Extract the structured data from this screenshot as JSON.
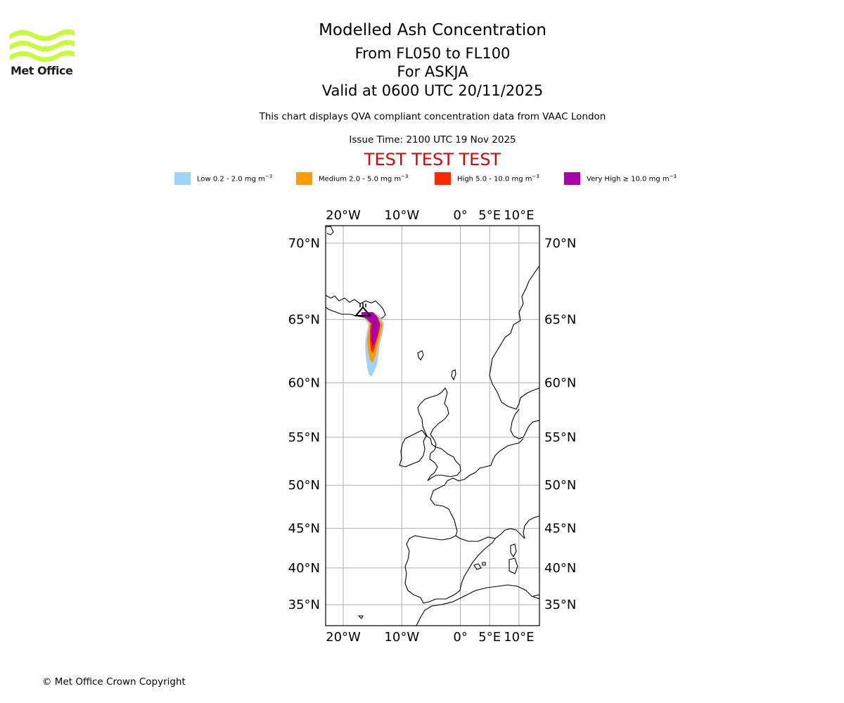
{
  "header": {
    "title": "Modelled Ash Concentration",
    "levels": "From FL050 to FL100",
    "volcano": "For ASKJA",
    "valid": "Valid at 0600 UTC 20/11/2025",
    "compliance": "This chart displays QVA compliant concentration data from VAAC London",
    "issue_time": "Issue Time: 2100 UTC 19 Nov 2025",
    "test_banner": "TEST TEST TEST"
  },
  "logo": {
    "name": "met-office-logo",
    "text": "Met Office",
    "color": "#c8fa3c"
  },
  "legend": [
    {
      "label": "Low 0.2 - 2.0 mg m",
      "unit_exp": "−3",
      "color": "#a0d2fa"
    },
    {
      "label": "Medium 2.0 - 5.0 mg m",
      "unit_exp": "−3",
      "color": "#ff9a00"
    },
    {
      "label": "High 5.0 - 10.0 mg m",
      "unit_exp": "−3",
      "color": "#ff2800"
    },
    {
      "label": "Very High ≥ 10.0 mg m",
      "unit_exp": "−3",
      "color": "#aa00aa"
    }
  ],
  "map": {
    "lon_ticks": [
      {
        "lon": -20,
        "label": "20°W"
      },
      {
        "lon": -10,
        "label": "10°W"
      },
      {
        "lon": 0,
        "label": "0°"
      },
      {
        "lon": 5,
        "label": "5°E"
      },
      {
        "lon": 10,
        "label": "10°E"
      }
    ],
    "lat_ticks": [
      {
        "lat": 70,
        "label": "70°N"
      },
      {
        "lat": 65,
        "label": "65°N"
      },
      {
        "lat": 60,
        "label": "60°N"
      },
      {
        "lat": 55,
        "label": "55°N"
      },
      {
        "lat": 50,
        "label": "50°N"
      },
      {
        "lat": 45,
        "label": "45°N"
      },
      {
        "lat": 40,
        "label": "40°N"
      },
      {
        "lat": 35,
        "label": "35°N"
      }
    ],
    "lon_range": [
      -23,
      13.5
    ],
    "lat_range": [
      32,
      71
    ],
    "volcano_position": {
      "lon": -16.75,
      "lat": 65.03
    }
  },
  "footer": {
    "copyright": "© Met Office Crown Copyright"
  }
}
